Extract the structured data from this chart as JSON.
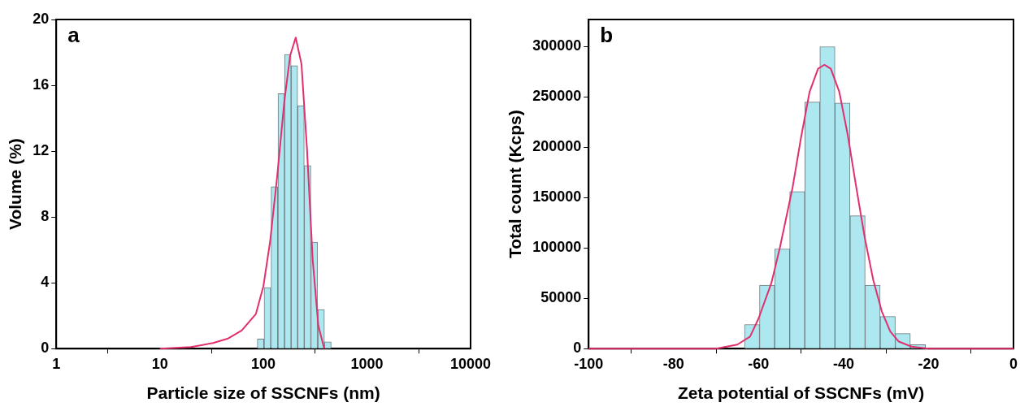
{
  "chart_data": [
    {
      "type": "histogram",
      "xlabel": "Particle size of SSCNFs (nm)",
      "ylabel": "Volume (%)",
      "annotations": [
        "a"
      ],
      "log": "x",
      "xlim": [
        1,
        10000
      ],
      "xticks": [
        1,
        10,
        100,
        1000,
        10000
      ],
      "ylim": [
        0,
        20
      ],
      "yticks": [
        0,
        4,
        8,
        12,
        16,
        20
      ],
      "grid": false,
      "legend": false,
      "series": [
        {
          "type": "histogram",
          "color": "#ade8f0",
          "bins": [
            87.3,
            101,
            118,
            138,
            160,
            185,
            214,
            248,
            287,
            333,
            391,
            449
          ],
          "values": [
            0.58,
            3.71,
            9.84,
            15.49,
            17.87,
            17.19,
            14.76,
            11.13,
            6.47,
            2.38,
            0.41
          ]
        },
        {
          "type": "line",
          "color": "#e0306e",
          "x": [
            10,
            20,
            32.7,
            45,
            61.7,
            84.5,
            100,
            116,
            136,
            159,
            181,
            205,
            233,
            263,
            299,
            339,
            386
          ],
          "values": [
            0,
            0.1,
            0.34,
            0.6,
            1.1,
            2.1,
            3.8,
            6.5,
            10.5,
            15,
            17.8,
            18.9,
            17.3,
            12.2,
            5.4,
            1.4,
            0
          ]
        }
      ]
    },
    {
      "type": "histogram",
      "xlabel": "Zeta potential of SSCNFs (mV)",
      "ylabel": "Total count (Kcps)",
      "annotations": [
        "b"
      ],
      "xlim": [
        -100,
        0
      ],
      "xticks": [
        -100,
        -80,
        -60,
        -40,
        -20,
        0
      ],
      "ylim": [
        0,
        327000
      ],
      "yticks": [
        0,
        50000,
        100000,
        150000,
        200000,
        250000,
        300000
      ],
      "grid": false,
      "legend": false,
      "series": [
        {
          "type": "histogram",
          "color": "#ade8f0",
          "bins": [
            -63.3,
            -59.8,
            -56.2,
            -52.7,
            -49.1,
            -45.6,
            -42.0,
            -38.5,
            -34.9,
            -31.4,
            -27.8,
            -24.3,
            -20.7
          ],
          "values": [
            24000,
            63000,
            99000,
            156000,
            245000,
            300000,
            244000,
            132000,
            63000,
            32000,
            15000,
            4000
          ]
        },
        {
          "type": "line",
          "color": "#e0306e",
          "x": [
            -100,
            -80,
            -70,
            -65,
            -62,
            -60,
            -57,
            -55,
            -52,
            -50,
            -48,
            -46,
            -44.5,
            -43,
            -41,
            -39,
            -37,
            -35,
            -33,
            -31,
            -29,
            -27,
            -24,
            -20,
            0
          ],
          "values": [
            0,
            0,
            0,
            4000,
            12000,
            30000,
            65000,
            100000,
            160000,
            210000,
            255000,
            278000,
            282000,
            278000,
            255000,
            212000,
            160000,
            110000,
            68000,
            37000,
            17000,
            7000,
            2000,
            0,
            0
          ]
        }
      ]
    }
  ]
}
